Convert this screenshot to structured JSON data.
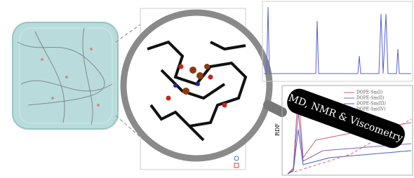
{
  "badge": {
    "label": "MD, NMR & Viscometry"
  },
  "rdf_panel": {
    "y_label": "RDF",
    "legend": [
      "DOPE-Sm(I)",
      "DOPE-Sm(II)",
      "DOPE-Sm(III)",
      "DOPE-Sm(IV)"
    ]
  }
}
